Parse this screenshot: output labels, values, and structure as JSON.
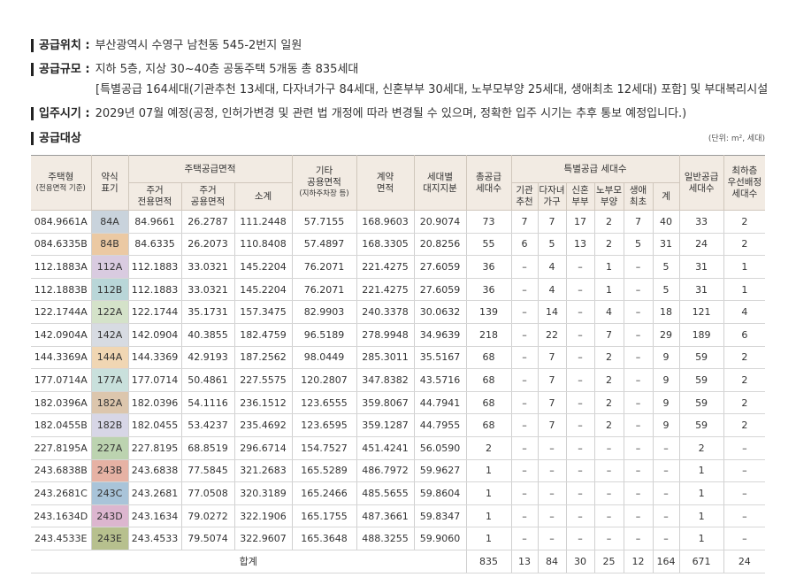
{
  "info": [
    {
      "label": "공급위치 :",
      "lines": [
        "부산광역시 수영구 남천동 545-2번지 일원"
      ]
    },
    {
      "label": "공급규모 :",
      "lines": [
        "지하 5층, 지상 30~40층 공동주택 5개동 총 835세대",
        "[특별공급 164세대(기관추천 13세대, 다자녀가구 84세대, 신혼부부 30세대, 노부모부양 25세대, 생애최초 12세대) 포함] 및 부대복리시설"
      ]
    },
    {
      "label": "입주시기 :",
      "lines": [
        "2029년 07월 예정(공정, 인허가변경 및 관련 법 개정에 따라 변경될 수 있으며, 정확한 입주 시기는 추후 통보 예정입니다.)"
      ]
    }
  ],
  "section_title": "공급대상",
  "unit": "(단위: m², 세대)",
  "table": {
    "header": {
      "type": [
        "주택형",
        "(전용면적 기준)"
      ],
      "abbr": [
        "약식",
        "표기"
      ],
      "supply_area": "주택공급면적",
      "exclusive": [
        "주거",
        "전용면적"
      ],
      "common": [
        "주거",
        "공용면적"
      ],
      "subtotal": "소계",
      "other": [
        "기타",
        "공용면적",
        "(지하주차장 등)"
      ],
      "contract": [
        "계약",
        "면적"
      ],
      "land": [
        "세대별",
        "대지지분"
      ],
      "total_units": [
        "총공급",
        "세대수"
      ],
      "special": "특별공급 세대수",
      "special_cols": [
        [
          "기관",
          "추천"
        ],
        [
          "다자녀",
          "가구"
        ],
        [
          "신혼",
          "부부"
        ],
        [
          "노부모",
          "부양"
        ],
        [
          "생애",
          "최초"
        ],
        "계"
      ],
      "general": [
        "일반공급",
        "세대수"
      ],
      "lowest": [
        "최하층",
        "우선배정",
        "세대수"
      ]
    },
    "rows": [
      {
        "badge_color": "#c9d3dc",
        "cells": [
          "084.9661A",
          "84A",
          "84.9661",
          "26.2787",
          "111.2448",
          "57.7155",
          "168.9603",
          "20.9074",
          "73",
          "7",
          "7",
          "17",
          "2",
          "7",
          "40",
          "33",
          "2"
        ]
      },
      {
        "badge_color": "#ebc9a3",
        "cells": [
          "084.6335B",
          "84B",
          "84.6335",
          "26.2073",
          "110.8408",
          "57.4897",
          "168.3305",
          "20.8256",
          "55",
          "6",
          "5",
          "13",
          "2",
          "5",
          "31",
          "24",
          "2"
        ]
      },
      {
        "badge_color": "#d9cbe0",
        "cells": [
          "112.1883A",
          "112A",
          "112.1883",
          "33.0321",
          "145.2204",
          "76.2071",
          "221.4275",
          "27.6059",
          "36",
          "–",
          "4",
          "–",
          "1",
          "–",
          "5",
          "31",
          "1"
        ]
      },
      {
        "badge_color": "#b9d6d8",
        "cells": [
          "112.1883B",
          "112B",
          "112.1883",
          "33.0321",
          "145.2204",
          "76.2071",
          "221.4275",
          "27.6059",
          "36",
          "–",
          "4",
          "–",
          "1",
          "–",
          "5",
          "31",
          "1"
        ]
      },
      {
        "badge_color": "#d4e2c9",
        "cells": [
          "122.1744A",
          "122A",
          "122.1744",
          "35.1731",
          "157.3475",
          "82.9903",
          "240.3378",
          "30.0632",
          "139",
          "–",
          "14",
          "–",
          "4",
          "–",
          "18",
          "121",
          "4"
        ]
      },
      {
        "badge_color": "#d7dbe2",
        "cells": [
          "142.0904A",
          "142A",
          "142.0904",
          "40.3855",
          "182.4759",
          "96.5189",
          "278.9948",
          "34.9639",
          "218",
          "–",
          "22",
          "–",
          "7",
          "–",
          "29",
          "189",
          "6"
        ]
      },
      {
        "badge_color": "#f0d6b3",
        "cells": [
          "144.3369A",
          "144A",
          "144.3369",
          "42.9193",
          "187.2562",
          "98.0449",
          "285.3011",
          "35.5167",
          "68",
          "–",
          "7",
          "–",
          "2",
          "–",
          "9",
          "59",
          "2"
        ]
      },
      {
        "badge_color": "#c9e0dc",
        "cells": [
          "177.0714A",
          "177A",
          "177.0714",
          "50.4861",
          "227.5575",
          "120.2807",
          "347.8382",
          "43.5716",
          "68",
          "–",
          "7",
          "–",
          "2",
          "–",
          "9",
          "59",
          "2"
        ]
      },
      {
        "badge_color": "#dcc6ad",
        "cells": [
          "182.0396A",
          "182A",
          "182.0396",
          "54.1116",
          "236.1512",
          "123.6555",
          "359.8067",
          "44.7941",
          "68",
          "–",
          "7",
          "–",
          "2",
          "–",
          "9",
          "59",
          "2"
        ]
      },
      {
        "badge_color": "#d7d6e6",
        "cells": [
          "182.0455B",
          "182B",
          "182.0455",
          "53.4237",
          "235.4692",
          "123.6595",
          "359.1287",
          "44.7955",
          "68",
          "–",
          "7",
          "–",
          "2",
          "–",
          "9",
          "59",
          "2"
        ]
      },
      {
        "badge_color": "#bcd3b0",
        "cells": [
          "227.8195A",
          "227A",
          "227.8195",
          "68.8519",
          "296.6714",
          "154.7527",
          "451.4241",
          "56.0590",
          "2",
          "–",
          "–",
          "–",
          "–",
          "–",
          "–",
          "2",
          "–"
        ]
      },
      {
        "badge_color": "#e6b2a4",
        "cells": [
          "243.6838B",
          "243B",
          "243.6838",
          "77.5845",
          "321.2683",
          "165.5289",
          "486.7972",
          "59.9627",
          "1",
          "–",
          "–",
          "–",
          "–",
          "–",
          "–",
          "1",
          "–"
        ]
      },
      {
        "badge_color": "#a9c4d9",
        "cells": [
          "243.2681C",
          "243C",
          "243.2681",
          "77.0508",
          "320.3189",
          "165.2466",
          "485.5655",
          "59.8604",
          "1",
          "–",
          "–",
          "–",
          "–",
          "–",
          "–",
          "1",
          "–"
        ]
      },
      {
        "badge_color": "#dcb6cf",
        "cells": [
          "243.1634D",
          "243D",
          "243.1634",
          "79.0272",
          "322.1906",
          "165.1755",
          "487.3661",
          "59.8347",
          "1",
          "–",
          "–",
          "–",
          "–",
          "–",
          "–",
          "1",
          "–"
        ]
      },
      {
        "badge_color": "#b7c08e",
        "cells": [
          "243.4533E",
          "243E",
          "243.4533",
          "79.5074",
          "322.9607",
          "165.3648",
          "488.3255",
          "59.9060",
          "1",
          "–",
          "–",
          "–",
          "–",
          "–",
          "–",
          "1",
          "–"
        ]
      }
    ],
    "total": {
      "label": "합계",
      "cells": [
        "835",
        "13",
        "84",
        "30",
        "25",
        "12",
        "164",
        "671",
        "24"
      ]
    }
  }
}
